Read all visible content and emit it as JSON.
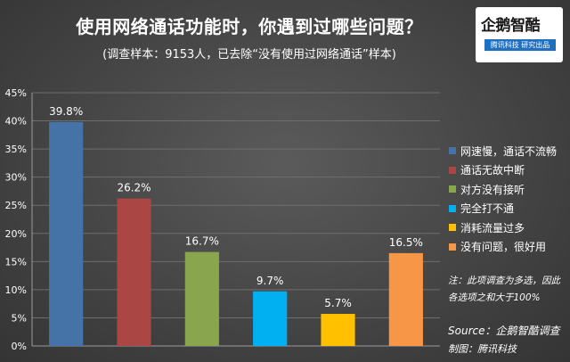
{
  "chart_data": {
    "type": "bar",
    "title": "使用网络通话功能时，你遇到过哪些问题？",
    "subtitle": "(调查样本：9153人，已去除“没有使用过网络通话”样本)",
    "categories": [
      "网速慢，通话不流畅",
      "通话无故中断",
      "对方没有接听",
      "完全打不通",
      "消耗流量过多",
      "没有问题，很好用"
    ],
    "values": [
      39.8,
      26.2,
      16.7,
      9.7,
      5.7,
      16.5
    ],
    "value_labels": [
      "39.8%",
      "26.2%",
      "16.7%",
      "9.7%",
      "5.7%",
      "16.5%"
    ],
    "colors": [
      "#4572a7",
      "#aa4643",
      "#89a54e",
      "#00b0f0",
      "#ffc000",
      "#f79646"
    ],
    "ylim": [
      0,
      45
    ],
    "yticks": [
      "0%",
      "5%",
      "10%",
      "15%",
      "20%",
      "25%",
      "30%",
      "35%",
      "40%",
      "45%"
    ],
    "grid": true,
    "legend_position": "right"
  },
  "logo": {
    "name": "企鹅智酷",
    "tagline": "腾讯科技  研究出品"
  },
  "note": "注：此项调查为多选，因此各选项之和大于100%",
  "source": "Source：企鹅智酷调查",
  "maker": "制图：腾讯科技"
}
